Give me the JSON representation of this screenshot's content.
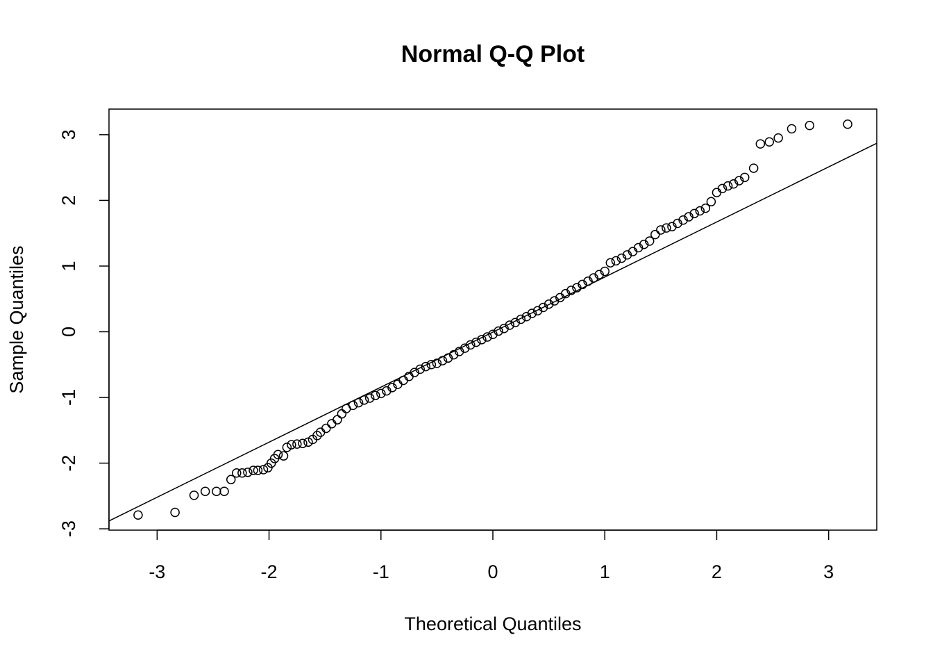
{
  "chart_data": {
    "type": "scatter",
    "title": "Normal Q-Q Plot",
    "x_label": "Theoretical Quantiles",
    "y_label": "Sample Quantiles",
    "xlim": [
      -3.43,
      3.43
    ],
    "ylim": [
      -3.02,
      3.39
    ],
    "xticks": [
      -3,
      -2,
      -1,
      0,
      1,
      2,
      3
    ],
    "yticks": [
      -3,
      -2,
      -1,
      0,
      1,
      2,
      3
    ],
    "grid": false,
    "series": [
      {
        "type": "scatter",
        "marker": "open-circle",
        "color": "#000000",
        "x": [
          -3.17,
          -2.84,
          -2.67,
          -2.57,
          -2.47,
          -2.4,
          -2.34,
          -2.29,
          -2.24,
          -2.19,
          -2.14,
          -2.1,
          -2.05,
          -2.01,
          -1.98,
          -1.95,
          -1.92,
          -1.87,
          -1.84,
          -1.8,
          -1.75,
          -1.7,
          -1.65,
          -1.61,
          -1.57,
          -1.54,
          -1.49,
          -1.44,
          -1.39,
          -1.35,
          -1.31,
          -1.25,
          -1.2,
          -1.15,
          -1.1,
          -1.05,
          -1.0,
          -0.95,
          -0.9,
          -0.85,
          -0.8,
          -0.75,
          -0.7,
          -0.65,
          -0.6,
          -0.55,
          -0.5,
          -0.45,
          -0.4,
          -0.35,
          -0.3,
          -0.25,
          -0.2,
          -0.15,
          -0.1,
          -0.05,
          0,
          0.05,
          0.1,
          0.15,
          0.2,
          0.25,
          0.3,
          0.35,
          0.4,
          0.45,
          0.5,
          0.55,
          0.6,
          0.65,
          0.7,
          0.75,
          0.8,
          0.85,
          0.9,
          0.95,
          1.0,
          1.05,
          1.1,
          1.15,
          1.2,
          1.25,
          1.3,
          1.35,
          1.4,
          1.45,
          1.5,
          1.55,
          1.6,
          1.65,
          1.7,
          1.75,
          1.8,
          1.85,
          1.9,
          1.95,
          2.0,
          2.05,
          2.1,
          2.15,
          2.2,
          2.25,
          2.33,
          2.39,
          2.47,
          2.55,
          2.67,
          2.83,
          3.17
        ],
        "values": [
          -2.79,
          -2.75,
          -2.49,
          -2.43,
          -2.43,
          -2.43,
          -2.25,
          -2.15,
          -2.15,
          -2.14,
          -2.11,
          -2.11,
          -2.1,
          -2.07,
          -2.0,
          -1.93,
          -1.87,
          -1.89,
          -1.76,
          -1.72,
          -1.71,
          -1.7,
          -1.68,
          -1.64,
          -1.58,
          -1.53,
          -1.47,
          -1.4,
          -1.34,
          -1.25,
          -1.17,
          -1.12,
          -1.08,
          -1.04,
          -1.01,
          -0.97,
          -0.94,
          -0.9,
          -0.85,
          -0.8,
          -0.74,
          -0.68,
          -0.62,
          -0.57,
          -0.53,
          -0.5,
          -0.48,
          -0.44,
          -0.4,
          -0.35,
          -0.3,
          -0.25,
          -0.2,
          -0.16,
          -0.12,
          -0.08,
          -0.04,
          0.01,
          0.05,
          0.1,
          0.14,
          0.19,
          0.23,
          0.28,
          0.32,
          0.37,
          0.42,
          0.47,
          0.52,
          0.58,
          0.63,
          0.67,
          0.72,
          0.77,
          0.82,
          0.87,
          0.92,
          1.05,
          1.08,
          1.12,
          1.17,
          1.22,
          1.28,
          1.33,
          1.38,
          1.48,
          1.55,
          1.58,
          1.6,
          1.65,
          1.7,
          1.75,
          1.8,
          1.84,
          1.88,
          1.98,
          2.12,
          2.18,
          2.22,
          2.25,
          2.3,
          2.35,
          2.49,
          2.86,
          2.89,
          2.95,
          3.09,
          3.14,
          3.16
        ]
      },
      {
        "type": "line",
        "color": "#000000",
        "x": [
          -3.43,
          3.43
        ],
        "values": [
          -2.88,
          2.87
        ]
      }
    ]
  }
}
